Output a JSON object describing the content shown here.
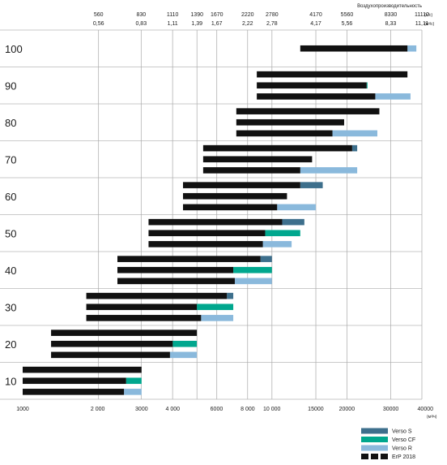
{
  "chart_data": {
    "type": "bar",
    "orientation": "horizontal",
    "x_scale": "log",
    "x_range": [
      1000,
      40000
    ],
    "x_unit": "(м³/ч)",
    "top_axis_title": "Воздухопроизводительность",
    "top_unit_ls": "(л/с)",
    "top_unit_ms": "(м³/с)",
    "x_ticks": [
      {
        "value": 1000,
        "label": "1000"
      },
      {
        "value": 2000,
        "label": "2 000"
      },
      {
        "value": 3000,
        "label": "3000"
      },
      {
        "value": 4000,
        "label": "4 000"
      },
      {
        "value": 6000,
        "label": "6000"
      },
      {
        "value": 8000,
        "label": "8 000"
      },
      {
        "value": 10000,
        "label": "10 000"
      },
      {
        "value": 15000,
        "label": "15000"
      },
      {
        "value": 20000,
        "label": "20000"
      },
      {
        "value": 30000,
        "label": "30000"
      },
      {
        "value": 40000,
        "label": "40000"
      }
    ],
    "top_ticks": [
      {
        "value": 2016,
        "ls": "560",
        "ms": "0,56"
      },
      {
        "value": 2988,
        "ls": "830",
        "ms": "0,83"
      },
      {
        "value": 3996,
        "ls": "1110",
        "ms": "1,11"
      },
      {
        "value": 5004,
        "ls": "1390",
        "ms": "1,39"
      },
      {
        "value": 6012,
        "ls": "1670",
        "ms": "1,67"
      },
      {
        "value": 7992,
        "ls": "2220",
        "ms": "2,22"
      },
      {
        "value": 10008,
        "ls": "2780",
        "ms": "2,78"
      },
      {
        "value": 15012,
        "ls": "4170",
        "ms": "4,17"
      },
      {
        "value": 20016,
        "ls": "5560",
        "ms": "5,56"
      },
      {
        "value": 29988,
        "ls": "8330",
        "ms": "8,33"
      },
      {
        "value": 39996,
        "ls": "11110",
        "ms": "11,11"
      }
    ],
    "sizes": [
      {
        "label": "100",
        "rows": [
          {
            "start": 13000,
            "erp_end": 35000,
            "ext_end": 38000,
            "ext": "R"
          }
        ]
      },
      {
        "label": "90",
        "rows": [
          {
            "start": 8700,
            "erp_end": 35000,
            "ext_end": null,
            "ext": null
          },
          {
            "start": 8700,
            "erp_end": 24000,
            "ext_end": 24200,
            "ext": "CF"
          },
          {
            "start": 8700,
            "erp_end": 26000,
            "ext_end": 36000,
            "ext": "R"
          }
        ]
      },
      {
        "label": "80",
        "rows": [
          {
            "start": 7200,
            "erp_end": 27000,
            "ext_end": null,
            "ext": null
          },
          {
            "start": 7200,
            "erp_end": 19500,
            "ext_end": null,
            "ext": null
          },
          {
            "start": 7200,
            "erp_end": 17500,
            "ext_end": 26500,
            "ext": "R"
          }
        ]
      },
      {
        "label": "70",
        "rows": [
          {
            "start": 5300,
            "erp_end": 21000,
            "ext_end": 22000,
            "ext": "S"
          },
          {
            "start": 5300,
            "erp_end": 14500,
            "ext_end": null,
            "ext": null
          },
          {
            "start": 5300,
            "erp_end": 13000,
            "ext_end": 22000,
            "ext": "R"
          }
        ]
      },
      {
        "label": "60",
        "rows": [
          {
            "start": 4400,
            "erp_end": 13000,
            "ext_end": 16000,
            "ext": "S"
          },
          {
            "start": 4400,
            "erp_end": 11500,
            "ext_end": null,
            "ext": null
          },
          {
            "start": 4400,
            "erp_end": 10500,
            "ext_end": 15000,
            "ext": "R"
          }
        ]
      },
      {
        "label": "50",
        "rows": [
          {
            "start": 3200,
            "erp_end": 11000,
            "ext_end": 13500,
            "ext": "S"
          },
          {
            "start": 3200,
            "erp_end": 9400,
            "ext_end": 13000,
            "ext": "CF"
          },
          {
            "start": 3200,
            "erp_end": 9200,
            "ext_end": 12000,
            "ext": "R"
          }
        ]
      },
      {
        "label": "40",
        "rows": [
          {
            "start": 2400,
            "erp_end": 9000,
            "ext_end": 10000,
            "ext": "S"
          },
          {
            "start": 2400,
            "erp_end": 7000,
            "ext_end": 10000,
            "ext": "CF"
          },
          {
            "start": 2400,
            "erp_end": 7100,
            "ext_end": 10000,
            "ext": "R"
          }
        ]
      },
      {
        "label": "30",
        "rows": [
          {
            "start": 1800,
            "erp_end": 6600,
            "ext_end": 7000,
            "ext": "S"
          },
          {
            "start": 1800,
            "erp_end": 5000,
            "ext_end": 7000,
            "ext": "CF"
          },
          {
            "start": 1800,
            "erp_end": 5200,
            "ext_end": 7000,
            "ext": "R"
          }
        ]
      },
      {
        "label": "20",
        "rows": [
          {
            "start": 1300,
            "erp_end": 5000,
            "ext_end": null,
            "ext": null
          },
          {
            "start": 1300,
            "erp_end": 4000,
            "ext_end": 5000,
            "ext": "CF"
          },
          {
            "start": 1300,
            "erp_end": 3900,
            "ext_end": 5000,
            "ext": "R"
          }
        ]
      },
      {
        "label": "10",
        "rows": [
          {
            "start": 1000,
            "erp_end": 3000,
            "ext_end": null,
            "ext": null
          },
          {
            "start": 1000,
            "erp_end": 2600,
            "ext_end": 3000,
            "ext": "CF"
          },
          {
            "start": 1000,
            "erp_end": 2550,
            "ext_end": 3000,
            "ext": "R"
          }
        ]
      }
    ],
    "legend_position": "bottom-right",
    "legend": [
      {
        "key": "S",
        "label": "Verso S",
        "color": "#3d6f8c"
      },
      {
        "key": "CF",
        "label": "Verso CF",
        "color": "#00a78e"
      },
      {
        "key": "R",
        "label": "Verso R",
        "color": "#8ab9dc"
      },
      {
        "key": "ERP",
        "label": "ErP 2018",
        "color": "#111111"
      }
    ],
    "grid": true
  }
}
